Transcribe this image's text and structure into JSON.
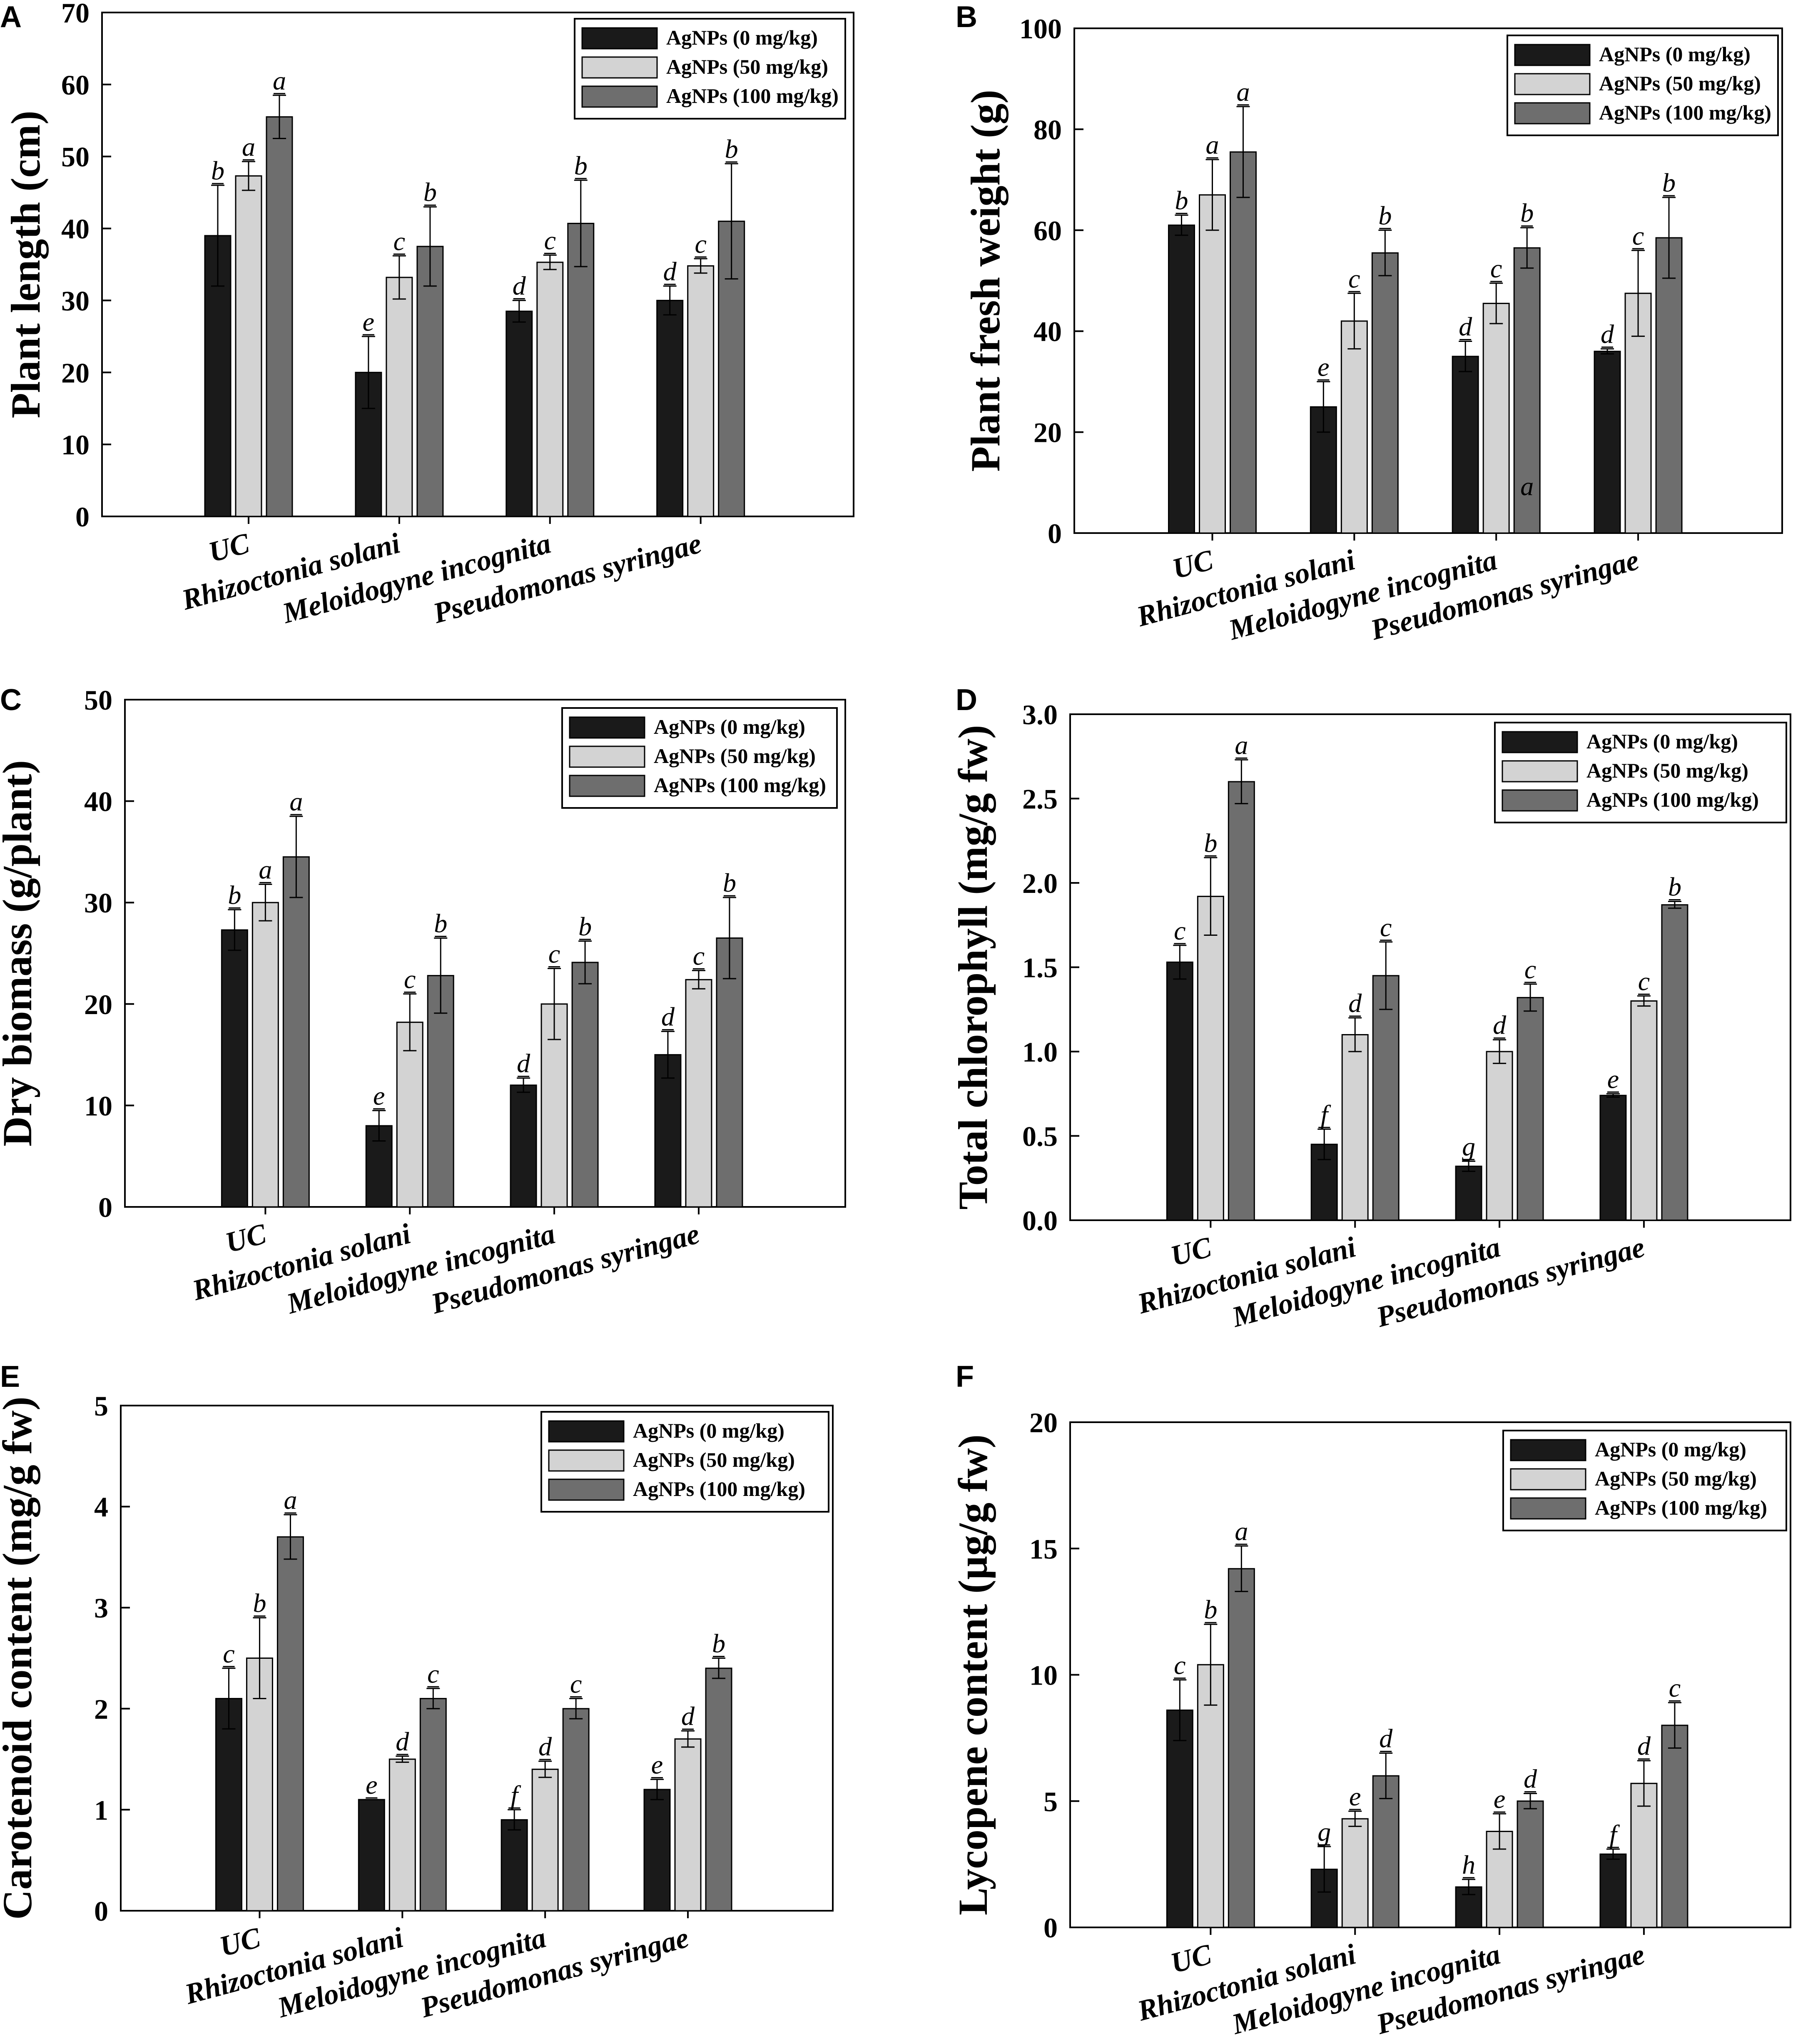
{
  "figure": {
    "colors": {
      "series0": "#1a1a1a",
      "series1": "#d3d3d3",
      "series2": "#6e6e6e",
      "axis": "#000000",
      "background": "#ffffff"
    }
  },
  "chart_data": [
    {
      "panel": "A",
      "type": "bar",
      "title": "",
      "xlabel": "",
      "ylabel": "Plant length (cm)",
      "ylim": [
        0,
        70
      ],
      "yticks": [
        "0",
        "10",
        "20",
        "30",
        "40",
        "50",
        "60",
        "70"
      ],
      "categories": [
        "UC",
        "Rhizoctonia solani",
        "Meloidogyne incognita",
        "Pseudomonas syringae"
      ],
      "legend": [
        "AgNPs (0 mg/kg)",
        "AgNPs (50 mg/kg)",
        "AgNPs (100 mg/kg)"
      ],
      "series": [
        {
          "name": "AgNPs (0 mg/kg)",
          "values": [
            39,
            20,
            28.5,
            30
          ],
          "errors": [
            7,
            5,
            1.5,
            2
          ],
          "labels": [
            "b",
            "e",
            "d",
            "d"
          ]
        },
        {
          "name": "AgNPs (50 mg/kg)",
          "values": [
            47.3,
            33.2,
            35.3,
            34.8
          ],
          "errors": [
            2,
            3,
            1,
            1
          ],
          "labels": [
            "a",
            "c",
            "c",
            "c"
          ]
        },
        {
          "name": "AgNPs (100 mg/kg)",
          "values": [
            55.5,
            37.5,
            40.7,
            41
          ],
          "errors": [
            3,
            5.5,
            6,
            8
          ],
          "labels": [
            "a",
            "b",
            "b",
            "b"
          ]
        }
      ],
      "extra_labels": []
    },
    {
      "panel": "B",
      "type": "bar",
      "title": "",
      "xlabel": "",
      "ylabel": "Plant fresh weight (g)",
      "ylim": [
        0,
        100
      ],
      "yticks": [
        "0",
        "20",
        "40",
        "60",
        "80",
        "100"
      ],
      "categories": [
        "UC",
        "Rhizoctonia solani",
        "Meloidogyne incognita",
        "Pseudomonas syringae"
      ],
      "legend": [
        "AgNPs (0 mg/kg)",
        "AgNPs (50 mg/kg)",
        "AgNPs (100 mg/kg)"
      ],
      "series": [
        {
          "name": "AgNPs (0 mg/kg)",
          "values": [
            61,
            25,
            35,
            36
          ],
          "errors": [
            2,
            5,
            3,
            0.5
          ],
          "labels": [
            "b",
            "e",
            "d",
            "d"
          ]
        },
        {
          "name": "AgNPs (50 mg/kg)",
          "values": [
            67,
            42,
            45.5,
            47.5
          ],
          "errors": [
            7,
            5.5,
            4,
            8.5
          ],
          "labels": [
            "a",
            "c",
            "c",
            "c"
          ]
        },
        {
          "name": "AgNPs (100 mg/kg)",
          "values": [
            75.5,
            55.5,
            56.5,
            58.5
          ],
          "errors": [
            9,
            4.5,
            4,
            8
          ],
          "labels": [
            "a",
            "b",
            "b",
            "b"
          ]
        }
      ],
      "extra_labels": [
        {
          "text": "a",
          "category": 2,
          "series": 2,
          "y": 7.5
        }
      ]
    },
    {
      "panel": "C",
      "type": "bar",
      "title": "",
      "xlabel": "",
      "ylabel": "Dry biomass (g/plant)",
      "ylim": [
        0,
        50
      ],
      "yticks": [
        "0",
        "10",
        "20",
        "30",
        "40",
        "50"
      ],
      "categories": [
        "UC",
        "Rhizoctonia solani",
        "Meloidogyne incognita",
        "Pseudomonas syringae"
      ],
      "legend": [
        "AgNPs (0 mg/kg)",
        "AgNPs (50 mg/kg)",
        "AgNPs (100 mg/kg)"
      ],
      "series": [
        {
          "name": "AgNPs (0 mg/kg)",
          "values": [
            27.3,
            8,
            12,
            15
          ],
          "errors": [
            2,
            1.5,
            0.7,
            2.3
          ],
          "labels": [
            "b",
            "e",
            "d",
            "d"
          ]
        },
        {
          "name": "AgNPs (50 mg/kg)",
          "values": [
            30,
            18.2,
            20,
            22.4
          ],
          "errors": [
            1.8,
            2.8,
            3.5,
            0.9
          ],
          "labels": [
            "a",
            "c",
            "c",
            "c"
          ]
        },
        {
          "name": "AgNPs (100 mg/kg)",
          "values": [
            34.5,
            22.8,
            24.1,
            26.5
          ],
          "errors": [
            4,
            3.7,
            2.1,
            4
          ],
          "labels": [
            "a",
            "b",
            "b",
            "b"
          ]
        }
      ],
      "extra_labels": []
    },
    {
      "panel": "D",
      "type": "bar",
      "title": "",
      "xlabel": "",
      "ylabel": "Total chlorophyll (mg/g fw)",
      "ylim": [
        0,
        3.0
      ],
      "yticks": [
        "0.0",
        "0.5",
        "1.0",
        "1.5",
        "2.0",
        "2.5",
        "3.0"
      ],
      "categories": [
        "UC",
        "Rhizoctonia solani",
        "Meloidogyne incognita",
        "Pseudomonas syringae"
      ],
      "legend": [
        "AgNPs (0 mg/kg)",
        "AgNPs (50 mg/kg)",
        "AgNPs (100 mg/kg)"
      ],
      "series": [
        {
          "name": "AgNPs (0 mg/kg)",
          "values": [
            1.53,
            0.45,
            0.32,
            0.74
          ],
          "errors": [
            0.1,
            0.09,
            0.03,
            0.01
          ],
          "labels": [
            "c",
            "f",
            "g",
            "e"
          ]
        },
        {
          "name": "AgNPs (50 mg/kg)",
          "values": [
            1.92,
            1.1,
            1.0,
            1.3
          ],
          "errors": [
            0.23,
            0.1,
            0.07,
            0.03
          ],
          "labels": [
            "b",
            "d",
            "d",
            "c"
          ]
        },
        {
          "name": "AgNPs (100 mg/kg)",
          "values": [
            2.6,
            1.45,
            1.32,
            1.87
          ],
          "errors": [
            0.13,
            0.2,
            0.08,
            0.02
          ],
          "labels": [
            "a",
            "c",
            "c",
            "b"
          ]
        }
      ],
      "extra_labels": []
    },
    {
      "panel": "E",
      "type": "bar",
      "title": "",
      "xlabel": "",
      "ylabel": "Carotenoid content (mg/g fw)",
      "ylim": [
        0,
        5
      ],
      "yticks": [
        "0",
        "1",
        "2",
        "3",
        "4",
        "5"
      ],
      "categories": [
        "UC",
        "Rhizoctonia solani",
        "Meloidogyne incognita",
        "Pseudomonas syringae"
      ],
      "legend": [
        "AgNPs (0 mg/kg)",
        "AgNPs (50 mg/kg)",
        "AgNPs (100 mg/kg)"
      ],
      "series": [
        {
          "name": "AgNPs (0 mg/kg)",
          "values": [
            2.1,
            1.1,
            0.9,
            1.2
          ],
          "errors": [
            0.3,
            0.0,
            0.1,
            0.1
          ],
          "labels": [
            "c",
            "e",
            "f",
            "e"
          ]
        },
        {
          "name": "AgNPs (50 mg/kg)",
          "values": [
            2.5,
            1.5,
            1.4,
            1.7
          ],
          "errors": [
            0.4,
            0.03,
            0.08,
            0.08
          ],
          "labels": [
            "b",
            "d",
            "d",
            "d"
          ]
        },
        {
          "name": "AgNPs (100 mg/kg)",
          "values": [
            3.7,
            2.1,
            2.0,
            2.4
          ],
          "errors": [
            0.22,
            0.1,
            0.1,
            0.1
          ],
          "labels": [
            "a",
            "c",
            "c",
            "b"
          ]
        }
      ],
      "extra_labels": []
    },
    {
      "panel": "F",
      "type": "bar",
      "title": "",
      "xlabel": "",
      "ylabel": "Lycopene content (µg/g fw)",
      "ylim": [
        0,
        20
      ],
      "yticks": [
        "0",
        "5",
        "10",
        "15",
        "20"
      ],
      "categories": [
        "UC",
        "Rhizoctonia solani",
        "Meloidogyne incognita",
        "Pseudomonas syringae"
      ],
      "legend": [
        "AgNPs (0 mg/kg)",
        "AgNPs (50 mg/kg)",
        "AgNPs (100 mg/kg)"
      ],
      "series": [
        {
          "name": "AgNPs (0 mg/kg)",
          "values": [
            8.6,
            2.3,
            1.6,
            2.9
          ],
          "errors": [
            1.2,
            0.9,
            0.3,
            0.2
          ],
          "labels": [
            "c",
            "g",
            "h",
            "f"
          ]
        },
        {
          "name": "AgNPs (50 mg/kg)",
          "values": [
            10.4,
            4.3,
            3.8,
            5.7
          ],
          "errors": [
            1.6,
            0.3,
            0.7,
            0.9
          ],
          "labels": [
            "b",
            "e",
            "e",
            "d"
          ]
        },
        {
          "name": "AgNPs (100 mg/kg)",
          "values": [
            14.2,
            6.0,
            5.0,
            8.0
          ],
          "errors": [
            0.9,
            0.9,
            0.3,
            0.9
          ],
          "labels": [
            "a",
            "d",
            "d",
            "c"
          ]
        }
      ],
      "extra_labels": []
    }
  ]
}
